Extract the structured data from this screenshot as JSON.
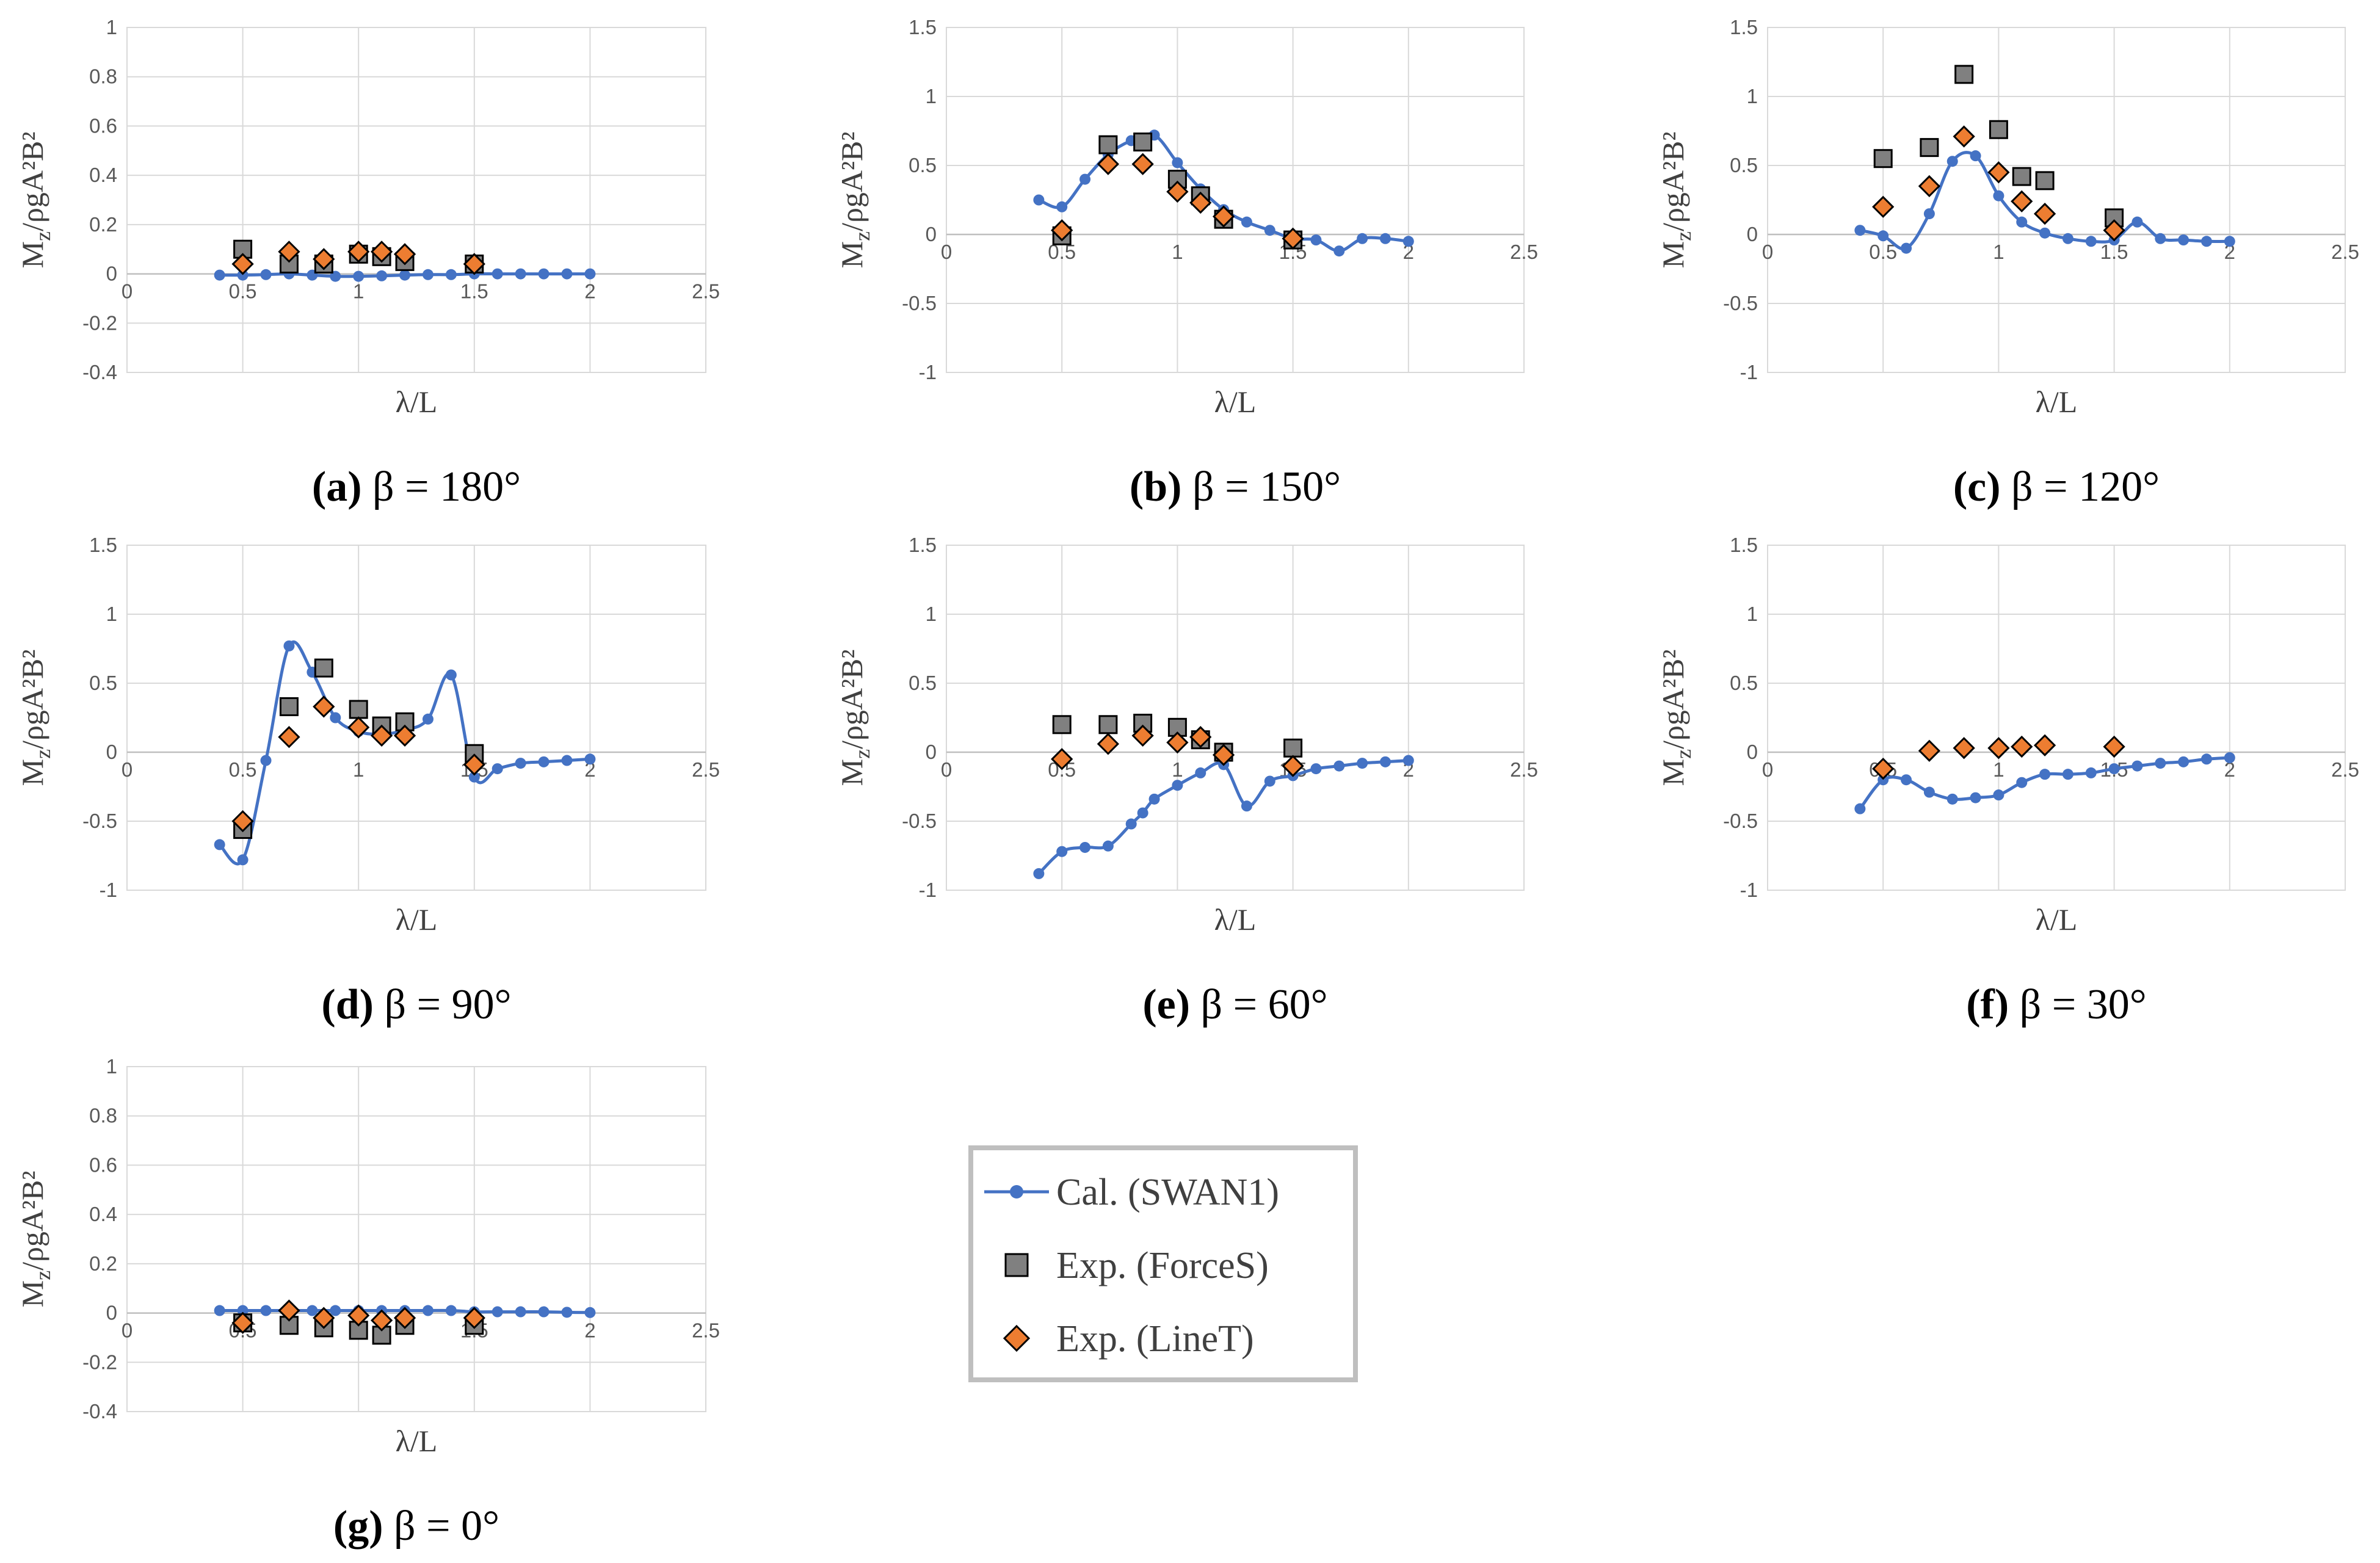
{
  "colors": {
    "calc": "#4472C4",
    "forces_fill": "#808080",
    "linet_fill": "#ED7D31",
    "marker_stroke": "#000000",
    "grid": "#D9D9D9",
    "axis": "#BFBFBF",
    "legend_border": "#BFBFBF"
  },
  "legend": {
    "items": [
      {
        "label": "Cal. (SWAN1)",
        "kind": "line"
      },
      {
        "label": "Exp. (ForceS)",
        "kind": "square"
      },
      {
        "label": "Exp. (LineT)",
        "kind": "diamond"
      }
    ]
  },
  "chart_data": [
    {
      "id": "a",
      "type": "scatter",
      "caption": {
        "letter": "(a)",
        "text": " β = 180°"
      },
      "xlabel": "λ/L",
      "ylabel": "Mz/ρgA²B²",
      "xlim": [
        0,
        2.5
      ],
      "ylim": [
        -0.4,
        1
      ],
      "xticks": [
        0,
        0.5,
        1,
        1.5,
        2,
        2.5
      ],
      "yticks": [
        -0.4,
        -0.2,
        0,
        0.2,
        0.4,
        0.6,
        0.8,
        1
      ],
      "grid": true,
      "series": [
        {
          "name": "Cal. (SWAN1)",
          "x": [
            0.4,
            0.5,
            0.6,
            0.7,
            0.8,
            0.9,
            1.0,
            1.1,
            1.2,
            1.3,
            1.4,
            1.5,
            1.6,
            1.7,
            1.8,
            1.9,
            2.0
          ],
          "y": [
            -0.005,
            -0.005,
            -0.003,
            0.0,
            -0.005,
            -0.01,
            -0.01,
            -0.008,
            -0.005,
            -0.003,
            -0.003,
            0.0,
            0.0,
            0.0,
            0.0,
            0.0,
            0.0
          ]
        },
        {
          "name": "Exp. (ForceS)",
          "x": [
            0.5,
            0.7,
            0.85,
            1.0,
            1.1,
            1.2,
            1.5
          ],
          "y": [
            0.1,
            0.04,
            0.04,
            0.08,
            0.07,
            0.05,
            0.04
          ]
        },
        {
          "name": "Exp. (LineT)",
          "x": [
            0.5,
            0.7,
            0.85,
            1.0,
            1.1,
            1.2,
            1.5
          ],
          "y": [
            0.04,
            0.09,
            0.06,
            0.09,
            0.09,
            0.08,
            0.04
          ]
        }
      ]
    },
    {
      "id": "b",
      "type": "scatter",
      "caption": {
        "letter": "(b)",
        "text": " β = 150°"
      },
      "xlabel": "λ/L",
      "ylabel": "Mz/ρgA²B²",
      "xlim": [
        0,
        2.5
      ],
      "ylim": [
        -1,
        1.5
      ],
      "xticks": [
        0,
        0.5,
        1,
        1.5,
        2,
        2.5
      ],
      "yticks": [
        -1,
        -0.5,
        0,
        0.5,
        1,
        1.5
      ],
      "grid": true,
      "series": [
        {
          "name": "Cal. (SWAN1)",
          "x": [
            0.4,
            0.5,
            0.6,
            0.7,
            0.8,
            0.9,
            1.0,
            1.1,
            1.2,
            1.3,
            1.4,
            1.5,
            1.6,
            1.7,
            1.8,
            1.9,
            2.0
          ],
          "y": [
            0.25,
            0.2,
            0.4,
            0.58,
            0.68,
            0.72,
            0.52,
            0.33,
            0.18,
            0.09,
            0.03,
            -0.03,
            -0.04,
            -0.12,
            -0.03,
            -0.03,
            -0.05
          ]
        },
        {
          "name": "Exp. (ForceS)",
          "x": [
            0.5,
            0.7,
            0.85,
            1.0,
            1.1,
            1.2,
            1.5
          ],
          "y": [
            -0.01,
            0.65,
            0.67,
            0.4,
            0.28,
            0.11,
            -0.04
          ]
        },
        {
          "name": "Exp. (LineT)",
          "x": [
            0.5,
            0.7,
            0.85,
            1.0,
            1.1,
            1.2,
            1.5
          ],
          "y": [
            0.03,
            0.51,
            0.51,
            0.31,
            0.23,
            0.13,
            -0.03
          ]
        }
      ]
    },
    {
      "id": "c",
      "type": "scatter",
      "caption": {
        "letter": "(c)",
        "text": " β = 120°"
      },
      "xlabel": "λ/L",
      "ylabel": "Mz/ρgA²B²",
      "xlim": [
        0,
        2.5
      ],
      "ylim": [
        -1,
        1.5
      ],
      "xticks": [
        0,
        0.5,
        1,
        1.5,
        2,
        2.5
      ],
      "yticks": [
        -1,
        -0.5,
        0,
        0.5,
        1,
        1.5
      ],
      "grid": true,
      "series": [
        {
          "name": "Cal. (SWAN1)",
          "x": [
            0.4,
            0.5,
            0.6,
            0.7,
            0.8,
            0.9,
            1.0,
            1.1,
            1.2,
            1.3,
            1.4,
            1.5,
            1.6,
            1.7,
            1.8,
            1.9,
            2.0
          ],
          "y": [
            0.03,
            -0.01,
            -0.1,
            0.15,
            0.53,
            0.57,
            0.28,
            0.09,
            0.01,
            -0.03,
            -0.05,
            -0.04,
            0.09,
            -0.03,
            -0.04,
            -0.05,
            -0.05
          ]
        },
        {
          "name": "Exp. (ForceS)",
          "x": [
            0.5,
            0.7,
            0.85,
            1.0,
            1.1,
            1.2,
            1.5
          ],
          "y": [
            0.55,
            0.63,
            1.16,
            0.76,
            0.42,
            0.39,
            0.12
          ]
        },
        {
          "name": "Exp. (LineT)",
          "x": [
            0.5,
            0.7,
            0.85,
            1.0,
            1.1,
            1.2,
            1.5
          ],
          "y": [
            0.2,
            0.35,
            0.71,
            0.45,
            0.24,
            0.15,
            0.03
          ]
        }
      ]
    },
    {
      "id": "d",
      "type": "scatter",
      "caption": {
        "letter": "(d)",
        "text": " β = 90°"
      },
      "xlabel": "λ/L",
      "ylabel": "Mz/ρgA²B²",
      "xlim": [
        0,
        2.5
      ],
      "ylim": [
        -1,
        1.5
      ],
      "xticks": [
        0,
        0.5,
        1,
        1.5,
        2,
        2.5
      ],
      "yticks": [
        -1,
        -0.5,
        0,
        0.5,
        1,
        1.5
      ],
      "grid": true,
      "series": [
        {
          "name": "Cal. (SWAN1)",
          "x": [
            0.4,
            0.5,
            0.6,
            0.7,
            0.8,
            0.9,
            1.0,
            1.1,
            1.2,
            1.3,
            1.4,
            1.5,
            1.6,
            1.7,
            1.8,
            1.9,
            2.0
          ],
          "y": [
            -0.67,
            -0.78,
            -0.06,
            0.77,
            0.58,
            0.25,
            0.15,
            0.13,
            0.16,
            0.24,
            0.56,
            -0.18,
            -0.12,
            -0.08,
            -0.07,
            -0.06,
            -0.05
          ]
        },
        {
          "name": "Exp. (ForceS)",
          "x": [
            0.5,
            0.7,
            0.85,
            1.0,
            1.1,
            1.2,
            1.5
          ],
          "y": [
            -0.56,
            0.33,
            0.61,
            0.31,
            0.19,
            0.22,
            -0.01
          ]
        },
        {
          "name": "Exp. (LineT)",
          "x": [
            0.5,
            0.7,
            0.85,
            1.0,
            1.1,
            1.2,
            1.5
          ],
          "y": [
            -0.5,
            0.11,
            0.33,
            0.18,
            0.12,
            0.12,
            -0.09
          ]
        }
      ]
    },
    {
      "id": "e",
      "type": "scatter",
      "caption": {
        "letter": "(e)",
        "text": " β = 60°"
      },
      "xlabel": "λ/L",
      "ylabel": "Mz/ρgA²B²",
      "xlim": [
        0,
        2.5
      ],
      "ylim": [
        -1,
        1.5
      ],
      "xticks": [
        0,
        0.5,
        1,
        1.5,
        2,
        2.5
      ],
      "yticks": [
        -1,
        -0.5,
        0,
        0.5,
        1,
        1.5
      ],
      "grid": true,
      "series": [
        {
          "name": "Cal. (SWAN1)",
          "x": [
            0.4,
            0.5,
            0.6,
            0.7,
            0.8,
            0.85,
            0.9,
            1.0,
            1.1,
            1.2,
            1.3,
            1.4,
            1.5,
            1.6,
            1.7,
            1.8,
            1.9,
            2.0
          ],
          "y": [
            -0.88,
            -0.72,
            -0.69,
            -0.68,
            -0.52,
            -0.44,
            -0.34,
            -0.24,
            -0.15,
            -0.09,
            -0.39,
            -0.21,
            -0.17,
            -0.12,
            -0.1,
            -0.08,
            -0.07,
            -0.06
          ]
        },
        {
          "name": "Exp. (ForceS)",
          "x": [
            0.5,
            0.7,
            0.85,
            1.0,
            1.1,
            1.2,
            1.5
          ],
          "y": [
            0.2,
            0.2,
            0.21,
            0.18,
            0.09,
            0.0,
            0.03
          ]
        },
        {
          "name": "Exp. (LineT)",
          "x": [
            0.5,
            0.7,
            0.85,
            1.0,
            1.1,
            1.2,
            1.5
          ],
          "y": [
            -0.05,
            0.06,
            0.12,
            0.07,
            0.11,
            -0.02,
            -0.1
          ]
        }
      ]
    },
    {
      "id": "f",
      "type": "scatter",
      "caption": {
        "letter": "(f)",
        "text": " β = 30°"
      },
      "xlabel": "λ/L",
      "ylabel": "Mz/ρgA²B²",
      "xlim": [
        0,
        2.5
      ],
      "ylim": [
        -1,
        1.5
      ],
      "xticks": [
        0,
        0.5,
        1,
        1.5,
        2,
        2.5
      ],
      "yticks": [
        -1,
        -0.5,
        0,
        0.5,
        1,
        1.5
      ],
      "grid": true,
      "series": [
        {
          "name": "Cal. (SWAN1)",
          "x": [
            0.4,
            0.5,
            0.6,
            0.7,
            0.8,
            0.9,
            1.0,
            1.1,
            1.2,
            1.3,
            1.4,
            1.5,
            1.6,
            1.7,
            1.8,
            1.9,
            2.0
          ],
          "y": [
            -0.41,
            -0.2,
            -0.2,
            -0.29,
            -0.34,
            -0.33,
            -0.31,
            -0.22,
            -0.16,
            -0.16,
            -0.15,
            -0.12,
            -0.1,
            -0.08,
            -0.07,
            -0.05,
            -0.04
          ]
        },
        {
          "name": "Exp. (ForceS)",
          "x": [],
          "y": []
        },
        {
          "name": "Exp. (LineT)",
          "x": [
            0.5,
            0.7,
            0.85,
            1.0,
            1.1,
            1.2,
            1.5
          ],
          "y": [
            -0.12,
            0.01,
            0.03,
            0.03,
            0.04,
            0.05,
            0.04
          ]
        }
      ]
    },
    {
      "id": "g",
      "type": "scatter",
      "caption": {
        "letter": "(g)",
        "text": " β = 0°"
      },
      "xlabel": "λ/L",
      "ylabel": "Mz/ρgA²B²",
      "xlim": [
        0,
        2.5
      ],
      "ylim": [
        -0.4,
        1
      ],
      "xticks": [
        0,
        0.5,
        1,
        1.5,
        2,
        2.5
      ],
      "yticks": [
        -0.4,
        -0.2,
        0,
        0.2,
        0.4,
        0.6,
        0.8,
        1
      ],
      "grid": true,
      "series": [
        {
          "name": "Cal. (SWAN1)",
          "x": [
            0.4,
            0.5,
            0.6,
            0.7,
            0.8,
            0.9,
            1.0,
            1.1,
            1.2,
            1.3,
            1.4,
            1.5,
            1.6,
            1.7,
            1.8,
            1.9,
            2.0
          ],
          "y": [
            0.01,
            0.01,
            0.01,
            0.01,
            0.01,
            0.01,
            0.01,
            0.01,
            0.01,
            0.01,
            0.01,
            0.005,
            0.005,
            0.005,
            0.005,
            0.003,
            0.002
          ]
        },
        {
          "name": "Exp. (ForceS)",
          "x": [
            0.5,
            0.7,
            0.85,
            1.0,
            1.1,
            1.2,
            1.5
          ],
          "y": [
            -0.04,
            -0.05,
            -0.06,
            -0.07,
            -0.09,
            -0.05,
            -0.05
          ]
        },
        {
          "name": "Exp. (LineT)",
          "x": [
            0.5,
            0.7,
            0.85,
            1.0,
            1.1,
            1.2,
            1.5
          ],
          "y": [
            -0.04,
            0.01,
            -0.02,
            -0.01,
            -0.03,
            -0.02,
            -0.02
          ]
        }
      ]
    }
  ]
}
